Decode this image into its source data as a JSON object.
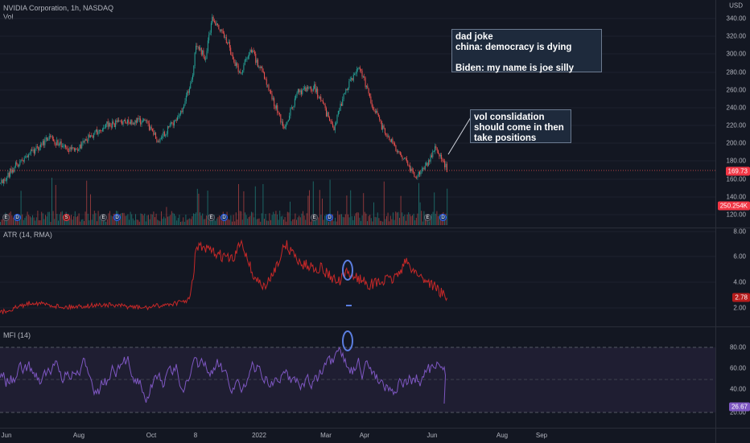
{
  "header": {
    "title": "NVIDIA Corporation, 1h, NASDAQ",
    "sub": "Vol",
    "currency": "USD"
  },
  "price_axis": [
    "340.00",
    "320.00",
    "300.00",
    "280.00",
    "260.00",
    "240.00",
    "220.00",
    "200.00",
    "180.00",
    "160.00",
    "140.00",
    "120.00"
  ],
  "price_badge": "169.73",
  "vol_badge": "250.254K",
  "atr": {
    "label": "ATR (14, RMA)",
    "axis": [
      "8.00",
      "6.00",
      "4.00",
      "2.00"
    ],
    "badge": "2.78"
  },
  "mfi": {
    "label": "MFI (14)",
    "axis": [
      "80.00",
      "60.00",
      "40.00",
      "20.00"
    ],
    "badge": "26.67"
  },
  "time_axis": [
    "Jun",
    "Aug",
    "Oct",
    "8",
    "2022",
    "Mar",
    "Apr",
    "Jun",
    "Aug",
    "Sep"
  ],
  "notes": {
    "joke": [
      "dad joke",
      "china: democracy is dying",
      "",
      "Biden: my name is joe silly"
    ],
    "vol": [
      "vol conslidation",
      "should come in then",
      "take positions"
    ]
  },
  "events": [
    {
      "t": "E"
    },
    {
      "t": "D"
    },
    {
      "t": "S"
    },
    {
      "t": "E"
    },
    {
      "t": "D"
    },
    {
      "t": "E"
    },
    {
      "t": "D"
    },
    {
      "t": "E"
    },
    {
      "t": "D"
    },
    {
      "t": "E"
    },
    {
      "t": "D"
    }
  ],
  "colors": {
    "up": "#26a69a",
    "down": "#ef5350",
    "atr": "#c62828",
    "mfi": "#7e57c2",
    "last_line": "#ef5350",
    "annotation": "#5b7ee0"
  }
}
